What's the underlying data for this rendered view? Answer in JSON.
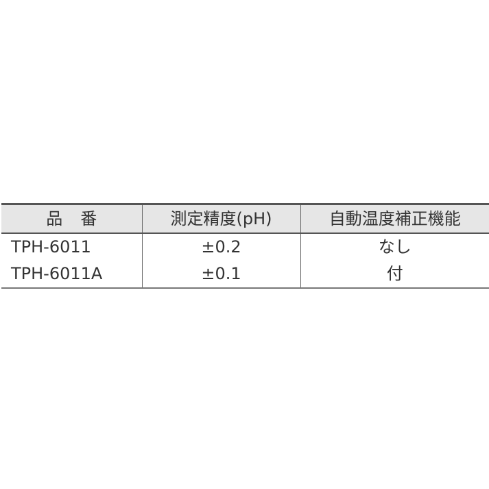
{
  "table": {
    "headers": [
      "品番",
      "測定精度(pH)",
      "自動温度補正機能"
    ],
    "rows": [
      [
        "TPH-6011",
        "±0.2",
        "なし"
      ],
      [
        "TPH-6011A",
        "±0.1",
        "付"
      ]
    ]
  },
  "colors": {
    "header_bg": "#e6e6e6",
    "border": "#555555",
    "text": "#333333"
  }
}
